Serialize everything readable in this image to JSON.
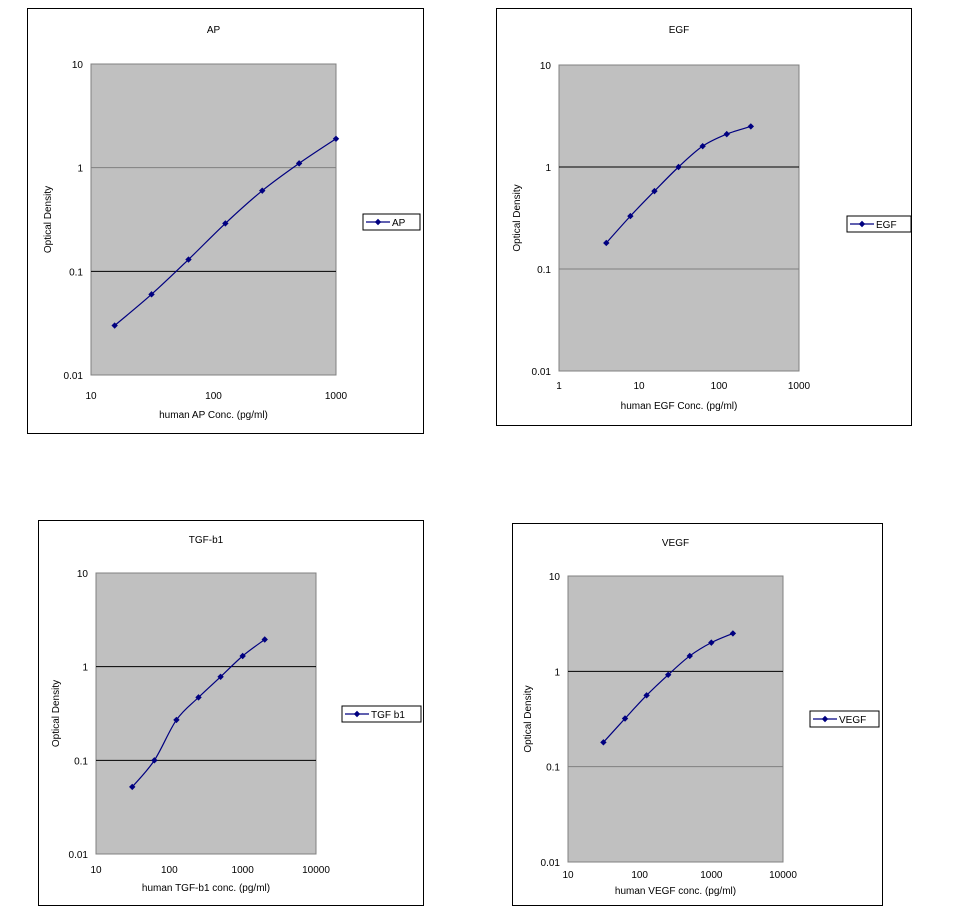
{
  "chart_data": [
    {
      "type": "line",
      "title": "AP",
      "xlabel": "human AP Conc. (pg/ml)",
      "ylabel": "Optical Density",
      "xscale": "log",
      "yscale": "log",
      "xlim": [
        10,
        1000
      ],
      "ylim": [
        0.01,
        10
      ],
      "xticks": [
        "10",
        "100",
        "1000"
      ],
      "yticks": [
        "0.01",
        "0.1",
        "1",
        "10"
      ],
      "grid": true,
      "legend": "right",
      "plot_background": "#c0c0c0",
      "series": [
        {
          "name": "AP",
          "color": "#000080",
          "x": [
            15.6,
            31.2,
            62.5,
            125,
            250,
            500,
            1000
          ],
          "y": [
            0.03,
            0.06,
            0.13,
            0.29,
            0.6,
            1.1,
            1.9
          ]
        }
      ]
    },
    {
      "type": "line",
      "title": "EGF",
      "xlabel": "human EGF Conc. (pg/ml)",
      "ylabel": "Optical Density",
      "xscale": "log",
      "yscale": "log",
      "xlim": [
        1,
        1000
      ],
      "ylim": [
        0.01,
        10
      ],
      "xticks": [
        "1",
        "10",
        "100",
        "1000"
      ],
      "yticks": [
        "0.01",
        "0.1",
        "1",
        "10"
      ],
      "grid": true,
      "legend": "right",
      "plot_background": "#c0c0c0",
      "series": [
        {
          "name": "EGF",
          "color": "#000080",
          "x": [
            3.9,
            7.8,
            15.6,
            31.2,
            62.5,
            125,
            250
          ],
          "y": [
            0.18,
            0.33,
            0.58,
            1.0,
            1.6,
            2.1,
            2.5
          ]
        }
      ]
    },
    {
      "type": "line",
      "title": "TGF-b1",
      "xlabel": "human TGF-b1 conc. (pg/ml)",
      "ylabel": "Optical Density",
      "xscale": "log",
      "yscale": "log",
      "xlim": [
        10,
        10000
      ],
      "ylim": [
        0.01,
        10
      ],
      "xticks": [
        "10",
        "100",
        "1000",
        "10000"
      ],
      "yticks": [
        "0.01",
        "0.1",
        "1",
        "10"
      ],
      "grid": true,
      "legend": "right",
      "plot_background": "#c0c0c0",
      "series": [
        {
          "name": "TGF b1",
          "color": "#000080",
          "x": [
            31.2,
            62.5,
            125,
            250,
            500,
            1000,
            2000
          ],
          "y": [
            0.052,
            0.1,
            0.27,
            0.47,
            0.78,
            1.3,
            1.95
          ]
        }
      ]
    },
    {
      "type": "line",
      "title": "VEGF",
      "xlabel": "human VEGF conc. (pg/ml)",
      "ylabel": "Optical Density",
      "xscale": "log",
      "yscale": "log",
      "xlim": [
        10,
        10000
      ],
      "ylim": [
        0.01,
        10
      ],
      "xticks": [
        "10",
        "100",
        "1000",
        "10000"
      ],
      "yticks": [
        "0.01",
        "0.1",
        "1",
        "10"
      ],
      "grid": true,
      "legend": "right",
      "plot_background": "#c0c0c0",
      "series": [
        {
          "name": "VEGF",
          "color": "#000080",
          "x": [
            31.2,
            62.5,
            125,
            250,
            500,
            1000,
            2000
          ],
          "y": [
            0.18,
            0.32,
            0.56,
            0.92,
            1.45,
            2.0,
            2.5
          ]
        }
      ]
    }
  ]
}
